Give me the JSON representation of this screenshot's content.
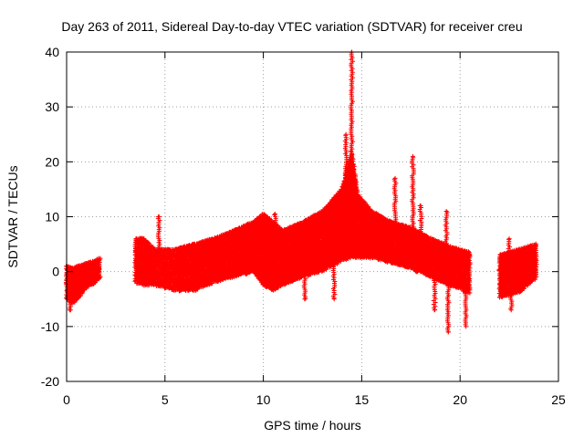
{
  "chart_data": {
    "type": "scatter",
    "title": "Day 263 of 2011, Sidereal Day-to-day VTEC variation (SDTVAR) for receiver creu",
    "xlabel": "GPS time / hours",
    "ylabel": "SDTVAR / TECUs",
    "xlim": [
      0,
      25
    ],
    "ylim": [
      -20,
      40
    ],
    "xticks": [
      0,
      5,
      10,
      15,
      20,
      25
    ],
    "yticks": [
      -20,
      -10,
      0,
      10,
      20,
      30,
      40
    ],
    "grid": true,
    "marker": "+",
    "color": "#ff0000",
    "series": [
      {
        "name": "SDTVAR",
        "band": [
          {
            "x": 0.0,
            "lo": -5,
            "hi": 1
          },
          {
            "x": 0.3,
            "lo": -6,
            "hi": 0.5
          },
          {
            "x": 0.6,
            "lo": -5,
            "hi": 1
          },
          {
            "x": 1.0,
            "lo": -3,
            "hi": 1.5
          },
          {
            "x": 1.5,
            "lo": -2,
            "hi": 2
          },
          {
            "x": 1.7,
            "lo": -1.5,
            "hi": 2.5
          },
          {
            "x": 3.5,
            "lo": -2,
            "hi": 6
          },
          {
            "x": 3.9,
            "lo": -2.5,
            "hi": 6
          },
          {
            "x": 4.5,
            "lo": -2.5,
            "hi": 4
          },
          {
            "x": 5.5,
            "lo": -3.5,
            "hi": 4
          },
          {
            "x": 6.5,
            "lo": -3.5,
            "hi": 5
          },
          {
            "x": 7.5,
            "lo": -2,
            "hi": 6
          },
          {
            "x": 8.5,
            "lo": -1,
            "hi": 7.5
          },
          {
            "x": 9.5,
            "lo": 0,
            "hi": 9
          },
          {
            "x": 10.0,
            "lo": -2.5,
            "hi": 10.5
          },
          {
            "x": 10.5,
            "lo": -3.5,
            "hi": 9
          },
          {
            "x": 11.0,
            "lo": -2.5,
            "hi": 7.5
          },
          {
            "x": 12.0,
            "lo": -1,
            "hi": 9
          },
          {
            "x": 13.0,
            "lo": 0,
            "hi": 11
          },
          {
            "x": 13.5,
            "lo": 1,
            "hi": 13
          },
          {
            "x": 14.0,
            "lo": 2,
            "hi": 15
          },
          {
            "x": 14.5,
            "lo": 2.5,
            "hi": 22
          },
          {
            "x": 14.8,
            "lo": 2.5,
            "hi": 14
          },
          {
            "x": 15.5,
            "lo": 2.5,
            "hi": 11
          },
          {
            "x": 16.5,
            "lo": 1.5,
            "hi": 9
          },
          {
            "x": 17.5,
            "lo": 0.5,
            "hi": 8
          },
          {
            "x": 18.5,
            "lo": -1,
            "hi": 6
          },
          {
            "x": 19.5,
            "lo": -2.5,
            "hi": 4.5
          },
          {
            "x": 20.5,
            "lo": -4,
            "hi": 3.5
          },
          {
            "x": 22.0,
            "lo": -5,
            "hi": 3
          },
          {
            "x": 23.0,
            "lo": -4,
            "hi": 4
          },
          {
            "x": 23.9,
            "lo": -1,
            "hi": 5
          }
        ],
        "spikes": [
          {
            "x": 14.5,
            "y": 40
          },
          {
            "x": 14.2,
            "y": 25
          },
          {
            "x": 13.6,
            "y": -5
          },
          {
            "x": 16.7,
            "y": 17
          },
          {
            "x": 17.6,
            "y": 21
          },
          {
            "x": 18.0,
            "y": 12
          },
          {
            "x": 19.3,
            "y": 11
          },
          {
            "x": 19.4,
            "y": -11
          },
          {
            "x": 18.7,
            "y": -7
          },
          {
            "x": 20.3,
            "y": -10
          },
          {
            "x": 22.5,
            "y": 6
          },
          {
            "x": 22.6,
            "y": -7
          },
          {
            "x": 4.7,
            "y": 10
          },
          {
            "x": 10.6,
            "y": 10.5
          },
          {
            "x": 12.1,
            "y": -5
          },
          {
            "x": 0.2,
            "y": -7
          },
          {
            "x": 3.8,
            "y": 6
          }
        ]
      }
    ]
  }
}
